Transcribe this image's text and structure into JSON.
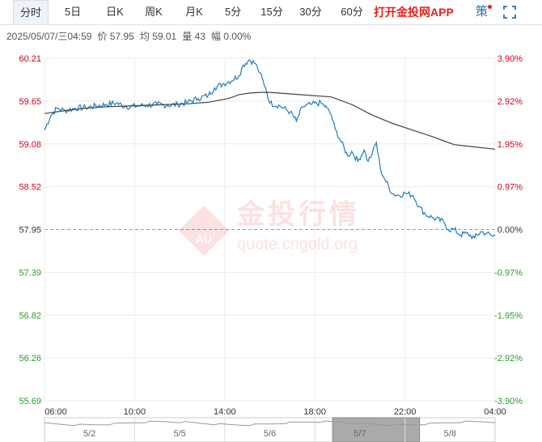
{
  "tabs": [
    "分时",
    "5日",
    "日K",
    "周K",
    "月K",
    "5分",
    "15分",
    "30分",
    "60分"
  ],
  "active_tab": "分时",
  "app_link": "打开金投网APP",
  "strategy_label": "策",
  "info": {
    "datetime": "2025/05/07/三04:59",
    "price_label": "价",
    "price": "57.95",
    "avg_label": "均",
    "avg": "59.01",
    "vol_label": "量",
    "vol": "43",
    "range_label": "幅",
    "range": "0.00%"
  },
  "watermark": {
    "brand": "金投行情",
    "url": "quote.cngold.org",
    "badge": "AU"
  },
  "colors": {
    "up": "#d0021b",
    "down": "#2a9d2a",
    "price_line": "#1a7dc0",
    "avg_line": "#444444"
  },
  "chart_data": {
    "type": "line",
    "xlabel": "",
    "ylabel": "",
    "ylim": [
      55.69,
      60.21
    ],
    "base": 57.95,
    "y_ticks": [
      "60.21",
      "59.65",
      "59.08",
      "58.52",
      "57.95",
      "57.39",
      "56.82",
      "56.26",
      "55.69"
    ],
    "pct_ticks": [
      "3.90%",
      "2.92%",
      "1.95%",
      "0.97%",
      "0.00%",
      "-0.97%",
      "-1.95%",
      "-2.92%",
      "-3.90%"
    ],
    "x_ticks": [
      "06:00",
      "10:00",
      "14:00",
      "18:00",
      "22:00",
      "04:00"
    ],
    "grid": true,
    "series": [
      {
        "name": "",
        "points": [
          [
            0,
            59.26
          ],
          [
            0.3,
            59.45
          ],
          [
            0.6,
            59.55
          ],
          [
            1,
            59.52
          ],
          [
            1.5,
            59.55
          ],
          [
            2,
            59.56
          ],
          [
            2.5,
            59.58
          ],
          [
            3,
            59.6
          ],
          [
            3.5,
            59.62
          ],
          [
            4,
            59.57
          ],
          [
            4.5,
            59.58
          ],
          [
            5,
            59.59
          ],
          [
            5.5,
            59.6
          ],
          [
            6,
            59.59
          ],
          [
            6.5,
            59.6
          ],
          [
            7,
            59.63
          ],
          [
            7.5,
            59.68
          ],
          [
            8,
            59.72
          ],
          [
            8.3,
            59.82
          ],
          [
            8.7,
            59.87
          ],
          [
            9,
            59.9
          ],
          [
            9.5,
            59.98
          ],
          [
            9.7,
            60.12
          ],
          [
            10,
            60.19
          ],
          [
            10.3,
            60.14
          ],
          [
            10.5,
            60.02
          ],
          [
            10.8,
            59.82
          ],
          [
            11,
            59.62
          ],
          [
            11.5,
            59.58
          ],
          [
            12,
            59.5
          ],
          [
            12.3,
            59.38
          ],
          [
            12.6,
            59.57
          ],
          [
            13,
            59.6
          ],
          [
            13.5,
            59.62
          ],
          [
            13.8,
            59.55
          ],
          [
            14,
            59.46
          ],
          [
            14.2,
            59.27
          ],
          [
            14.5,
            59.1
          ],
          [
            14.8,
            58.92
          ],
          [
            15,
            58.98
          ],
          [
            15.3,
            58.85
          ],
          [
            15.6,
            59.0
          ],
          [
            15.8,
            58.85
          ],
          [
            16,
            58.95
          ],
          [
            16.2,
            59.1
          ],
          [
            16.4,
            58.75
          ],
          [
            16.6,
            58.62
          ],
          [
            17,
            58.42
          ],
          [
            17.3,
            58.4
          ],
          [
            17.6,
            58.43
          ],
          [
            18,
            58.4
          ],
          [
            18.3,
            58.25
          ],
          [
            18.6,
            58.15
          ],
          [
            19,
            58.1
          ],
          [
            19.5,
            58.05
          ],
          [
            19.7,
            57.95
          ],
          [
            20,
            57.95
          ],
          [
            20.3,
            57.88
          ],
          [
            20.6,
            57.9
          ],
          [
            21,
            57.84
          ],
          [
            21.3,
            57.92
          ],
          [
            21.6,
            57.9
          ],
          [
            21.9,
            57.86
          ],
          [
            22,
            57.87
          ]
        ]
      },
      {
        "name": "",
        "points": [
          [
            0,
            59.48
          ],
          [
            1,
            59.52
          ],
          [
            2,
            59.55
          ],
          [
            3,
            59.57
          ],
          [
            4,
            59.58
          ],
          [
            5,
            59.59
          ],
          [
            6,
            59.6
          ],
          [
            7,
            59.61
          ],
          [
            8,
            59.63
          ],
          [
            9,
            59.68
          ],
          [
            9.5,
            59.73
          ],
          [
            10,
            59.75
          ],
          [
            10.5,
            59.76
          ],
          [
            11,
            59.76
          ],
          [
            11.5,
            59.75
          ],
          [
            12,
            59.74
          ],
          [
            13,
            59.72
          ],
          [
            14,
            59.7
          ],
          [
            15,
            59.6
          ],
          [
            16,
            59.46
          ],
          [
            17,
            59.35
          ],
          [
            18,
            59.26
          ],
          [
            19,
            59.17
          ],
          [
            19.5,
            59.12
          ],
          [
            20,
            59.07
          ],
          [
            21,
            59.04
          ],
          [
            22,
            59.01
          ]
        ]
      }
    ],
    "navigator": {
      "labels": [
        "5/2",
        "5/5",
        "5/6",
        "5/7",
        "5/8"
      ],
      "selected": "5/7"
    }
  }
}
